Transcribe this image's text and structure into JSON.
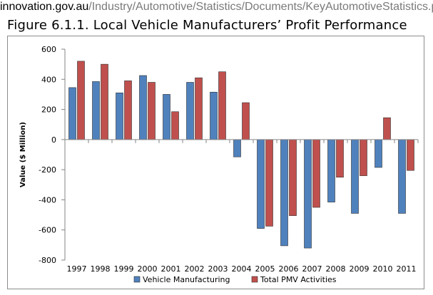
{
  "source": {
    "domain": "innovation.gov.au",
    "path": "/Industry/Automotive/Statistics/Documents/KeyAutomotiveStatistics.pdf"
  },
  "figure_title": "Figure 6.1.1. Local Vehicle Manufacturers’ Profit Performance",
  "chart_data": {
    "type": "bar",
    "title": "Figure 6.1.1. Local Vehicle Manufacturers’ Profit Performance",
    "xlabel": "",
    "ylabel": "Value ($ Million)",
    "ylim": [
      -800,
      600
    ],
    "yticks": [
      600,
      400,
      200,
      0,
      -200,
      -400,
      -600,
      -800
    ],
    "grid": false,
    "legend_position": "bottom",
    "categories": [
      "1997",
      "1998",
      "1999",
      "2000",
      "2001",
      "2002",
      "2003",
      "2004",
      "2005",
      "2006",
      "2007",
      "2008",
      "2009",
      "2010",
      "2011"
    ],
    "series": [
      {
        "name": "Vehicle Manufacturing",
        "color": "#4f81bd",
        "values": [
          345,
          385,
          310,
          425,
          300,
          380,
          315,
          -115,
          -590,
          -705,
          -720,
          -415,
          -490,
          -185,
          -490
        ]
      },
      {
        "name": "Total PMV Activities",
        "color": "#c0504d",
        "values": [
          520,
          500,
          390,
          380,
          185,
          410,
          450,
          245,
          -575,
          -505,
          -450,
          -250,
          -240,
          145,
          -205
        ]
      }
    ]
  }
}
